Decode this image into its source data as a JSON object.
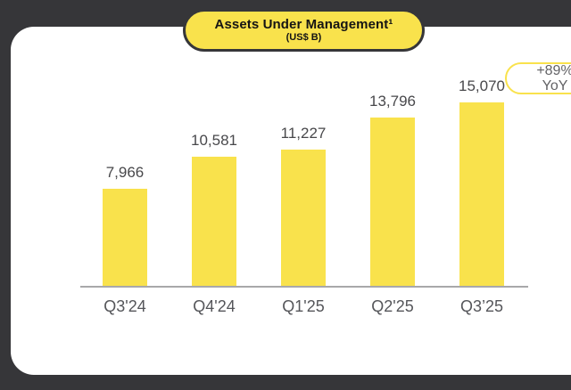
{
  "colors": {
    "background_dark": "#363639",
    "card_background": "#FFFFFF",
    "accent_yellow": "#F9E24C",
    "axis_gray": "#A8A8AA",
    "value_label_gray": "#48484B",
    "tick_label_gray": "#55565A"
  },
  "header": {
    "title": "Assets Under Management¹",
    "subtitle": "(US$ B)"
  },
  "yoy_badge": {
    "line1": "+89%",
    "line2": "YoY"
  },
  "chart_data": {
    "type": "bar",
    "title": "Assets Under Management (US$ B)",
    "categories": [
      "Q3'24",
      "Q4'24",
      "Q1'25",
      "Q2'25",
      "Q3’25"
    ],
    "values": [
      7966,
      10581,
      11227,
      13796,
      15070
    ],
    "value_labels": [
      "7,966",
      "10,581",
      "11,227",
      "13,796",
      "15,070"
    ],
    "bar_color": "#F9E24C",
    "xlabel": "",
    "ylabel": "US$ B",
    "ylim": [
      0,
      15070
    ],
    "grid": false,
    "legend_position": "none",
    "annotation": "+89% YoY"
  }
}
